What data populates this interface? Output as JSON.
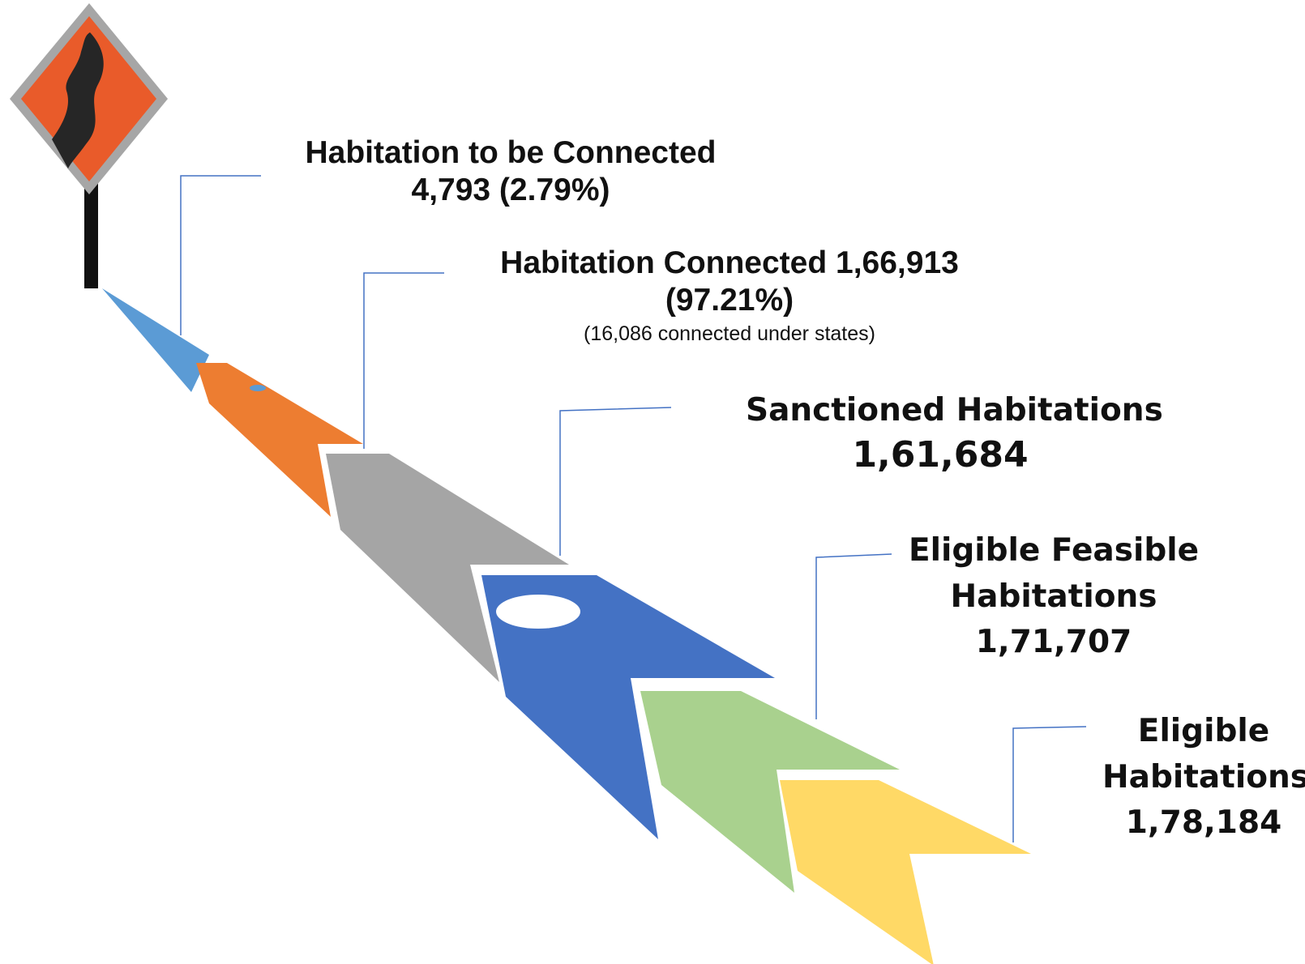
{
  "stages": [
    {
      "id": "to-be-connected",
      "lines": [
        "Habitation  to be Connected",
        "4,793 (2.79%)"
      ],
      "value": 4793,
      "percent": 2.79,
      "color": "#5b9bd5"
    },
    {
      "id": "connected",
      "lines": [
        "Habitation Connected 1,66,913",
        "(97.21%)"
      ],
      "note": "(16,086 connected under states)",
      "value": 166913,
      "percent": 97.21,
      "color": "#ed7d31"
    },
    {
      "id": "sanctioned",
      "lines": [
        "Sanctioned Habitations"
      ],
      "value_text": "1,61,684",
      "value": 161684,
      "color": "#4472c4"
    },
    {
      "id": "eligible-feasible",
      "lines": [
        "Eligible Feasible",
        "Habitations",
        "1,71,707"
      ],
      "value": 171707,
      "color": "#a9d18e"
    },
    {
      "id": "eligible",
      "lines": [
        "Eligible",
        "Habitations",
        "1,78,184"
      ],
      "value": 178184,
      "color": "#ffd966"
    }
  ],
  "road_segment_color": "#a5a5a5",
  "leader_line_color": "#4472c4",
  "sign": {
    "icon": "winding-road-sign-icon",
    "fill": "#e95b2a",
    "border": "#a6a6a6",
    "road": "#262626"
  }
}
